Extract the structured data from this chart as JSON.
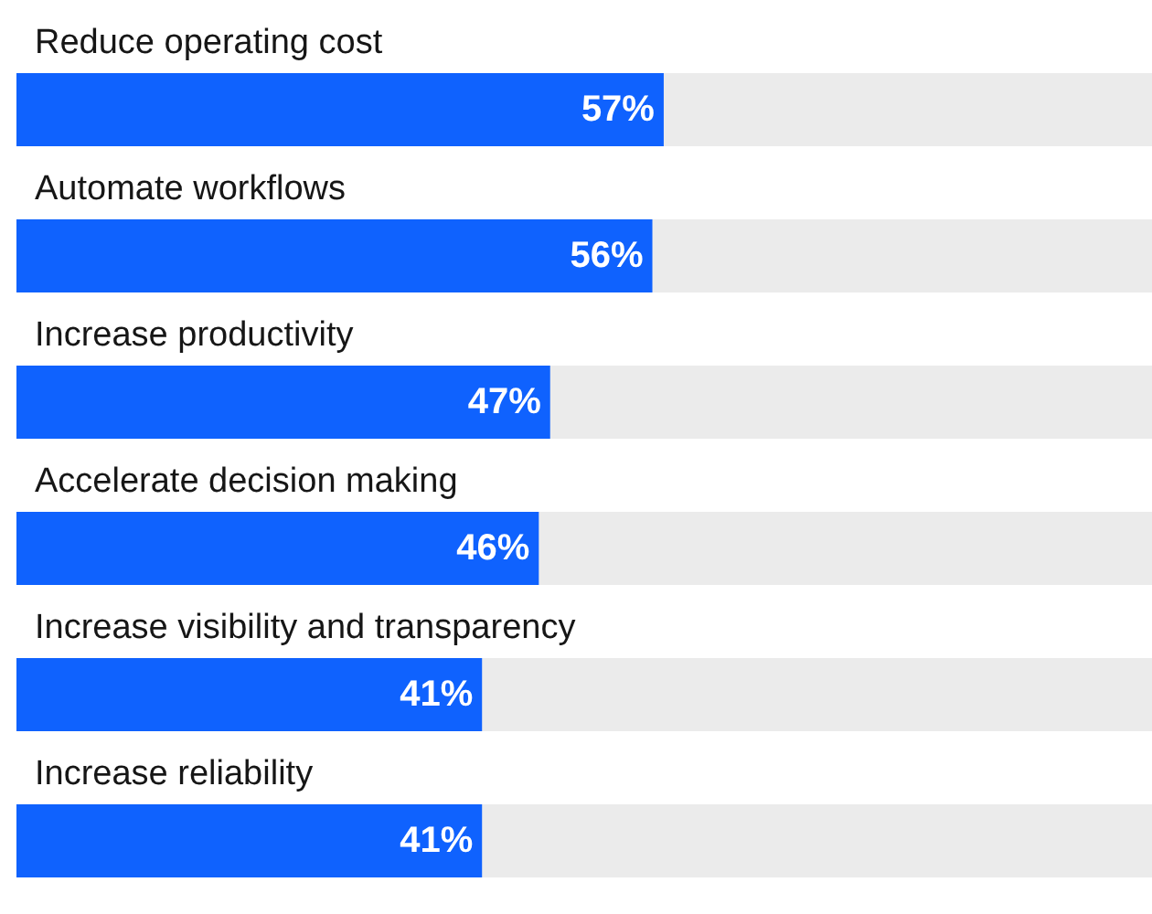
{
  "chart_data": {
    "type": "bar",
    "orientation": "horizontal",
    "categories": [
      "Reduce operating cost",
      "Automate workflows",
      "Increase productivity",
      "Accelerate decision making",
      "Increase visibility and transparency",
      "Increase reliability"
    ],
    "values": [
      57,
      56,
      47,
      46,
      41,
      41
    ],
    "value_labels": [
      "57%",
      "56%",
      "47%",
      "46%",
      "41%",
      "41%"
    ],
    "color": "#0f62fe",
    "xlim": [
      0,
      100
    ],
    "tick_labels": "y"
  }
}
